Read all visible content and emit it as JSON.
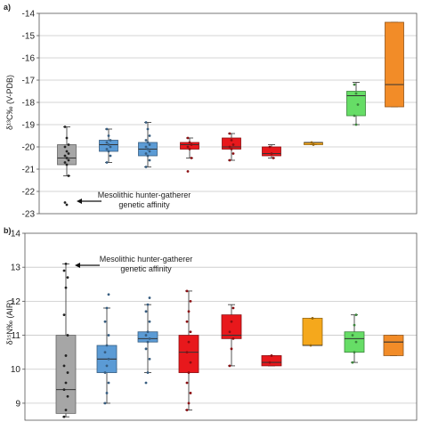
{
  "chart_data": [
    {
      "panel": "a)",
      "type": "box",
      "ylabel": "δ¹³C‰ (V-PDB)",
      "ylim": [
        -23,
        -14
      ],
      "yticks": [
        -23,
        -22,
        -21,
        -20,
        -19,
        -18,
        -17,
        -16,
        -15,
        -14
      ],
      "ytick_labels": [
        "-23",
        "-22",
        "-21",
        "-20",
        "-19",
        "-18",
        "-17",
        "-16",
        "-15",
        "-14"
      ],
      "grid": true,
      "annotation": {
        "lines": [
          "Mesolithic hunter-gatherer",
          "genetic affinity"
        ],
        "target": {
          "group": 0,
          "value": -22.6
        }
      },
      "groups": [
        {
          "color": "#a6a6a6",
          "min": -21.3,
          "q1": -20.8,
          "median": -20.5,
          "q3": -19.9,
          "max": -19.1,
          "points": [
            -19.1,
            -19.6,
            -19.9,
            -20.0,
            -20.2,
            -20.3,
            -20.4,
            -20.5,
            -20.6,
            -20.7,
            -20.8,
            -21.3,
            -22.5,
            -22.6
          ]
        },
        {
          "color": "#5b9bd5",
          "min": -20.7,
          "q1": -20.2,
          "median": -19.9,
          "q3": -19.7,
          "max": -19.2,
          "points": [
            -19.2,
            -19.5,
            -19.7,
            -19.8,
            -19.9,
            -20.0,
            -20.1,
            -20.2,
            -20.4,
            -20.7
          ]
        },
        {
          "color": "#5b9bd5",
          "min": -20.9,
          "q1": -20.4,
          "median": -20.1,
          "q3": -19.8,
          "max": -18.9,
          "points": [
            -18.9,
            -19.2,
            -19.5,
            -19.7,
            -19.8,
            -19.9,
            -20.0,
            -20.1,
            -20.2,
            -20.3,
            -20.4,
            -20.6,
            -20.9
          ]
        },
        {
          "color": "#e8181c",
          "min": -20.5,
          "q1": -20.1,
          "median": -19.9,
          "q3": -19.8,
          "max": -19.6,
          "points": [
            -19.6,
            -19.8,
            -19.9,
            -20.0,
            -20.1,
            -20.5,
            -21.1
          ]
        },
        {
          "color": "#e8181c",
          "min": -20.6,
          "q1": -20.1,
          "median": -20.0,
          "q3": -19.6,
          "max": -19.4,
          "points": [
            -19.4,
            -19.7,
            -19.9,
            -20.0,
            -20.1,
            -20.3,
            -20.6
          ]
        },
        {
          "color": "#e8181c",
          "min": -20.5,
          "q1": -20.4,
          "median": -20.3,
          "q3": -20.0,
          "max": -19.9,
          "points": [
            -20.0,
            -20.3,
            -20.5
          ]
        },
        {
          "color": "#f5a81c",
          "min": -19.9,
          "q1": -19.9,
          "median": -19.8,
          "q3": -19.8,
          "max": -19.8,
          "points": [
            -19.8,
            -19.9
          ]
        },
        {
          "color": "#66dd66",
          "min": -19.0,
          "q1": -18.6,
          "median": -17.7,
          "q3": -17.5,
          "max": -17.1,
          "points": [
            -17.2,
            -17.6,
            -18.1,
            -18.6,
            -19.0
          ]
        },
        {
          "color": "#f28c28",
          "min": -18.2,
          "q1": -18.2,
          "median": -17.2,
          "q3": -14.4,
          "max": -14.4,
          "points": []
        }
      ]
    },
    {
      "panel": "b)",
      "type": "box",
      "ylabel": "δ¹⁵N‰ (AIR)",
      "ylim": [
        8.5,
        14
      ],
      "yticks": [
        9,
        10,
        11,
        12,
        13,
        14
      ],
      "ytick_labels": [
        "9",
        "10",
        "11",
        "12",
        "13",
        "14"
      ],
      "grid": true,
      "annotation": {
        "lines": [
          "Mesolithic hunter-gatherer",
          "genetic affinity"
        ],
        "target": {
          "group": 0,
          "value": 13.0
        }
      },
      "groups": [
        {
          "color": "#a6a6a6",
          "min": 8.6,
          "q1": 8.7,
          "median": 9.4,
          "q3": 11.0,
          "max": 13.1,
          "points": [
            8.6,
            8.8,
            9.2,
            9.4,
            9.6,
            9.9,
            10.1,
            10.4,
            11.0,
            11.6,
            12.4,
            12.7,
            12.9,
            13.1
          ]
        },
        {
          "color": "#5b9bd5",
          "min": 9.0,
          "q1": 9.9,
          "median": 10.3,
          "q3": 10.7,
          "max": 11.8,
          "points": [
            9.0,
            9.3,
            9.6,
            9.9,
            10.1,
            10.3,
            10.5,
            10.7,
            11.0,
            11.4,
            11.8,
            12.2
          ]
        },
        {
          "color": "#5b9bd5",
          "min": 9.9,
          "q1": 10.8,
          "median": 10.9,
          "q3": 11.1,
          "max": 11.9,
          "points": [
            9.6,
            9.9,
            10.3,
            10.6,
            10.8,
            10.9,
            11.0,
            11.1,
            11.4,
            11.7,
            11.9,
            12.1
          ]
        },
        {
          "color": "#e8181c",
          "min": 8.8,
          "q1": 9.9,
          "median": 10.5,
          "q3": 11.0,
          "max": 12.3,
          "points": [
            8.8,
            9.0,
            9.3,
            9.6,
            9.9,
            10.2,
            10.5,
            10.8,
            11.1,
            11.4,
            11.7,
            12.0,
            12.3
          ]
        },
        {
          "color": "#e8181c",
          "min": 10.1,
          "q1": 10.9,
          "median": 11.0,
          "q3": 11.6,
          "max": 11.9,
          "points": [
            10.1,
            10.6,
            10.9,
            11.1,
            11.4,
            11.8
          ]
        },
        {
          "color": "#e8181c",
          "min": 10.1,
          "q1": 10.1,
          "median": 10.2,
          "q3": 10.4,
          "max": 10.4,
          "points": [
            10.2,
            10.4
          ]
        },
        {
          "color": "#f5a81c",
          "min": 10.7,
          "q1": 10.7,
          "median": 10.7,
          "q3": 11.5,
          "max": 11.5,
          "points": [
            10.7,
            11.5
          ]
        },
        {
          "color": "#66dd66",
          "min": 10.2,
          "q1": 10.5,
          "median": 10.9,
          "q3": 11.1,
          "max": 11.6,
          "points": [
            10.2,
            10.5,
            10.8,
            11.0,
            11.3,
            11.6
          ]
        },
        {
          "color": "#f28c28",
          "min": 10.4,
          "q1": 10.4,
          "median": 10.8,
          "q3": 11.0,
          "max": 11.0,
          "points": []
        }
      ]
    }
  ]
}
